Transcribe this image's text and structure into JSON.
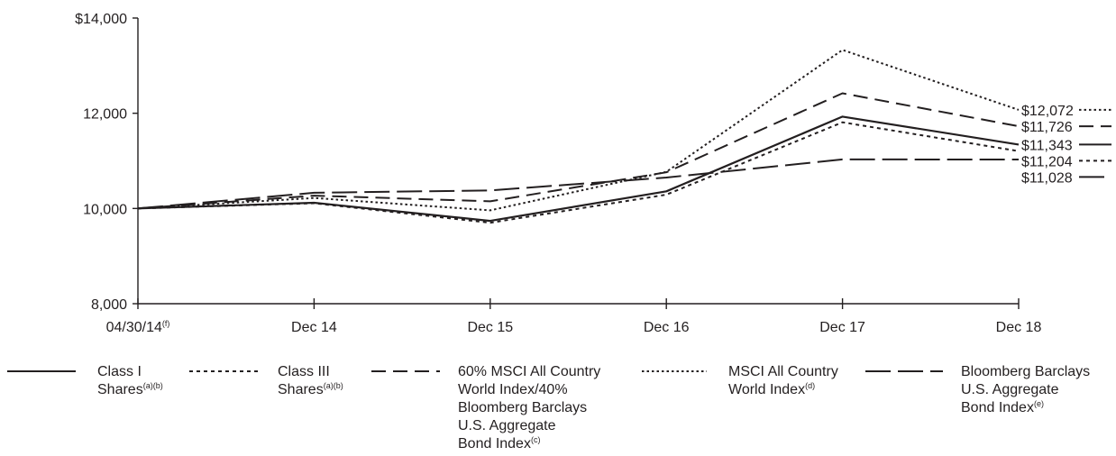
{
  "chart_data": {
    "type": "line",
    "x": [
      "04/30/14",
      "Dec 14",
      "Dec 15",
      "Dec 16",
      "Dec 17",
      "Dec 18"
    ],
    "x_label_sup": [
      "(f)",
      "",
      "",
      "",
      "",
      ""
    ],
    "y_ticks": [
      8000,
      10000,
      12000,
      14000
    ],
    "y_tick_labels": [
      "8,000",
      "10,000",
      "12,000",
      "$14,000"
    ],
    "ylim": [
      8000,
      14000
    ],
    "grid": false,
    "legend_position": "bottom",
    "series": [
      {
        "name": "Class I Shares",
        "sup": "(a)(b)",
        "style": "solid",
        "values": [
          10000,
          10120,
          9740,
          10360,
          11930,
          11343
        ],
        "end_label": "$11,343"
      },
      {
        "name": "Class III Shares",
        "sup": "(a)(b)",
        "style": "short-dash",
        "values": [
          10000,
          10110,
          9700,
          10290,
          11810,
          11204
        ],
        "end_label": "$11,204"
      },
      {
        "name": "60% MSCI All Country World Index/40% Bloomberg Barclays U.S. Aggregate Bond Index",
        "sup": "(c)",
        "style": "medium-dash",
        "values": [
          10000,
          10270,
          10150,
          10760,
          12420,
          11726
        ],
        "end_label": "$11,726"
      },
      {
        "name": "MSCI All Country World Index",
        "sup": "(d)",
        "style": "dotted",
        "values": [
          10000,
          10220,
          9960,
          10770,
          13330,
          12072
        ],
        "end_label": "$12,072"
      },
      {
        "name": "Bloomberg Barclays U.S. Aggregate Bond Index",
        "sup": "(e)",
        "style": "long-dash",
        "values": [
          10000,
          10330,
          10380,
          10650,
          11030,
          11028
        ],
        "end_label": "$11,028"
      }
    ],
    "legend_lines": [
      [
        "Class I",
        "Shares"
      ],
      [
        "Class III",
        "Shares"
      ],
      [
        "60% MSCI All Country",
        "World Index/40%",
        "Bloomberg Barclays",
        "U.S. Aggregate",
        "Bond Index"
      ],
      [
        "MSCI All Country",
        "World Index"
      ],
      [
        "Bloomberg Barclays",
        "U.S. Aggregate",
        "Bond Index"
      ]
    ],
    "colors": {
      "line": "#231f20",
      "axis": "#231f20",
      "background": "#ffffff"
    }
  }
}
